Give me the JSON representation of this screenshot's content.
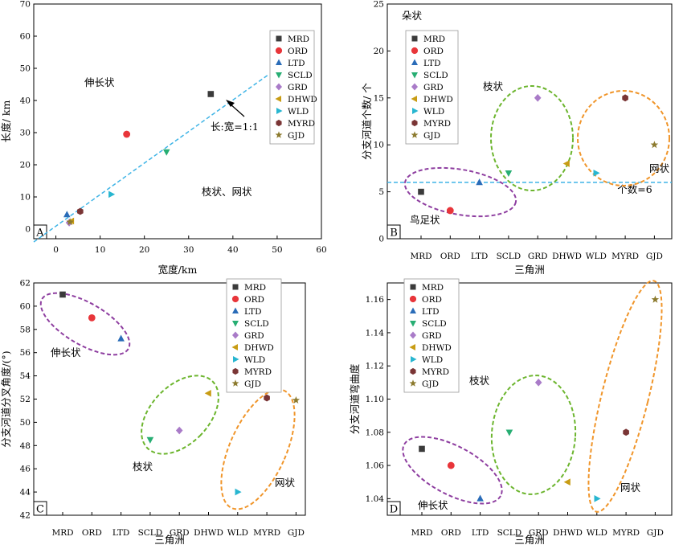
{
  "legend": [
    "MRD",
    "ORD",
    "LTD",
    "SCLD",
    "GRD",
    "DHWD",
    "WLD",
    "MYRD",
    "GJD"
  ],
  "series_styles": {
    "MRD": {
      "color": "#3b3b3b",
      "marker": "square"
    },
    "ORD": {
      "color": "#e8353a",
      "marker": "circle"
    },
    "LTD": {
      "color": "#2a6cb8",
      "marker": "triangle-up"
    },
    "SCLD": {
      "color": "#27ae73",
      "marker": "triangle-down"
    },
    "GRD": {
      "color": "#a97bc8",
      "marker": "diamond"
    },
    "DHWD": {
      "color": "#c89c14",
      "marker": "triangle-left"
    },
    "WLD": {
      "color": "#28b6d0",
      "marker": "triangle-right"
    },
    "MYRD": {
      "color": "#7a3535",
      "marker": "hexagon"
    },
    "GJD": {
      "color": "#8c7a2e",
      "marker": "star"
    }
  },
  "ellipse_colors": {
    "purple": "#8e3ea0",
    "green": "#6cb52e",
    "orange": "#f0952a",
    "ref": "#3fb4e6"
  },
  "chart_data": [
    {
      "panel": "A",
      "type": "scatter",
      "xlabel": "宽度/km",
      "ylabel": "长度/ km",
      "xlim": [
        -5,
        60
      ],
      "ylim": [
        -3,
        70
      ],
      "xticks": [
        0,
        10,
        20,
        30,
        40,
        50,
        60
      ],
      "yticks": [
        0,
        10,
        20,
        30,
        40,
        50,
        60,
        70
      ],
      "points": [
        {
          "name": "MRD",
          "x": 35,
          "y": 42
        },
        {
          "name": "ORD",
          "x": 16,
          "y": 29.5
        },
        {
          "name": "LTD",
          "x": 2.5,
          "y": 4.5
        },
        {
          "name": "SCLD",
          "x": 25,
          "y": 24
        },
        {
          "name": "GRD",
          "x": 3,
          "y": 2
        },
        {
          "name": "DHWD",
          "x": 3.5,
          "y": 2.5
        },
        {
          "name": "WLD",
          "x": 12.5,
          "y": 10.8
        },
        {
          "name": "MYRD",
          "x": 5.5,
          "y": 5.5
        },
        {
          "name": "GJD",
          "x": 3.2,
          "y": 2.2
        }
      ],
      "reference_line": {
        "from": [
          -5,
          -4
        ],
        "to": [
          48,
          48
        ]
      },
      "annotations": {
        "upper": "伸长状",
        "lower": "枝状、网状",
        "ratio": "长:宽=1:1"
      },
      "legend_position": "top-right"
    },
    {
      "panel": "B",
      "type": "scatter",
      "xlabel": "三角洲",
      "ylabel": "分支河道个数/ 个",
      "categories": [
        "MRD",
        "ORD",
        "LTD",
        "SCLD",
        "GRD",
        "DHWD",
        "WLD",
        "MYRD",
        "GJD"
      ],
      "ylim": [
        0,
        25
      ],
      "yticks": [
        0,
        5,
        10,
        15,
        20,
        25
      ],
      "values": [
        5,
        3,
        6,
        7,
        15,
        8,
        7,
        15,
        10
      ],
      "reference_line": {
        "y": 6,
        "label": "个数=6"
      },
      "annotations": {
        "top": "朵状",
        "branch": "枝状",
        "bird": "鸟足状",
        "net": "网状"
      },
      "legend_position": "top-left"
    },
    {
      "panel": "C",
      "type": "scatter",
      "xlabel": "三角洲",
      "ylabel": "分支河道分叉角度/(°)",
      "categories": [
        "MRD",
        "ORD",
        "LTD",
        "SCLD",
        "GRD",
        "DHWD",
        "WLD",
        "MYRD",
        "GJD"
      ],
      "ylim": [
        42,
        62
      ],
      "yticks": [
        42,
        44,
        46,
        48,
        50,
        52,
        54,
        56,
        58,
        60,
        62
      ],
      "values": [
        61,
        59,
        57.2,
        48.5,
        49.3,
        52.5,
        44,
        52.1,
        51.9
      ],
      "annotations": {
        "elongated": "伸长状",
        "branch": "枝状",
        "net": "网状"
      },
      "legend_position": "top-right"
    },
    {
      "panel": "D",
      "type": "scatter",
      "xlabel": "三角洲",
      "ylabel": "分支河道弯曲度",
      "categories": [
        "MRD",
        "ORD",
        "LTD",
        "SCLD",
        "GRD",
        "DHWD",
        "WLD",
        "MYRD",
        "GJD"
      ],
      "ylim": [
        1.03,
        1.17
      ],
      "yticks": [
        1.04,
        1.06,
        1.08,
        1.1,
        1.12,
        1.14,
        1.16
      ],
      "values": [
        1.07,
        1.06,
        1.04,
        1.08,
        1.11,
        1.05,
        1.04,
        1.08,
        1.16
      ],
      "annotations": {
        "branch": "枝状",
        "elongated": "伸长状",
        "net": "网状"
      },
      "legend_position": "top-left"
    }
  ]
}
